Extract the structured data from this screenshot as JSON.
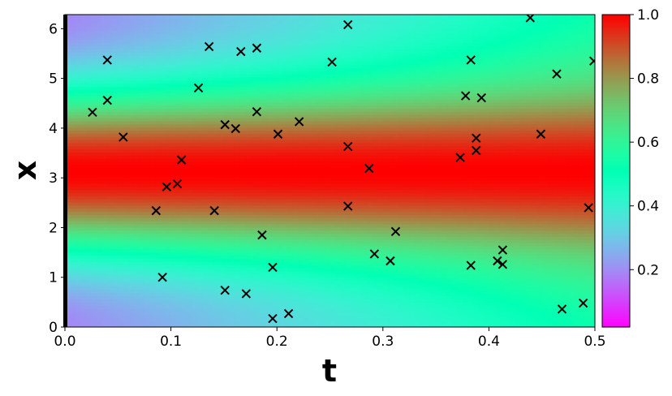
{
  "chart_data": {
    "type": "heatmap",
    "title": "",
    "xlabel": "t",
    "ylabel": "x",
    "xlim": [
      0,
      0.5
    ],
    "ylim": [
      0,
      6.2832
    ],
    "x_ticks": [
      "0.0",
      "0.1",
      "0.2",
      "0.3",
      "0.4",
      "0.5"
    ],
    "y_ticks": [
      "0",
      "1",
      "2",
      "3",
      "4",
      "5",
      "6"
    ],
    "colormap": "rainbow",
    "colorbar": {
      "range": [
        0.02,
        1.0
      ],
      "ticks": [
        "0.2",
        "0.4",
        "0.6",
        "0.8",
        "1.0"
      ],
      "tick_values": [
        0.2,
        0.4,
        0.6,
        0.8,
        1.0
      ]
    },
    "boundary_marker_color": "#000000",
    "marker": "x",
    "marker_color": "#000000",
    "scatter_points": [
      {
        "t": 0.026,
        "x": 4.32
      },
      {
        "t": 0.04,
        "x": 5.37
      },
      {
        "t": 0.04,
        "x": 4.56
      },
      {
        "t": 0.055,
        "x": 3.82
      },
      {
        "t": 0.086,
        "x": 2.34
      },
      {
        "t": 0.092,
        "x": 1.0
      },
      {
        "t": 0.096,
        "x": 2.82
      },
      {
        "t": 0.106,
        "x": 2.88
      },
      {
        "t": 0.11,
        "x": 3.36
      },
      {
        "t": 0.126,
        "x": 4.81
      },
      {
        "t": 0.136,
        "x": 5.64
      },
      {
        "t": 0.141,
        "x": 2.34
      },
      {
        "t": 0.151,
        "x": 4.07
      },
      {
        "t": 0.151,
        "x": 0.74
      },
      {
        "t": 0.161,
        "x": 3.99
      },
      {
        "t": 0.166,
        "x": 5.54
      },
      {
        "t": 0.171,
        "x": 0.67
      },
      {
        "t": 0.181,
        "x": 5.61
      },
      {
        "t": 0.181,
        "x": 4.33
      },
      {
        "t": 0.186,
        "x": 1.85
      },
      {
        "t": 0.196,
        "x": 1.2
      },
      {
        "t": 0.196,
        "x": 0.17
      },
      {
        "t": 0.201,
        "x": 3.88
      },
      {
        "t": 0.211,
        "x": 0.27
      },
      {
        "t": 0.221,
        "x": 4.13
      },
      {
        "t": 0.252,
        "x": 5.33
      },
      {
        "t": 0.267,
        "x": 6.08
      },
      {
        "t": 0.267,
        "x": 3.63
      },
      {
        "t": 0.267,
        "x": 2.43
      },
      {
        "t": 0.287,
        "x": 3.19
      },
      {
        "t": 0.292,
        "x": 1.47
      },
      {
        "t": 0.307,
        "x": 1.33
      },
      {
        "t": 0.312,
        "x": 1.92
      },
      {
        "t": 0.373,
        "x": 3.41
      },
      {
        "t": 0.378,
        "x": 4.65
      },
      {
        "t": 0.383,
        "x": 5.37
      },
      {
        "t": 0.383,
        "x": 1.24
      },
      {
        "t": 0.388,
        "x": 3.8
      },
      {
        "t": 0.388,
        "x": 3.55
      },
      {
        "t": 0.393,
        "x": 4.61
      },
      {
        "t": 0.408,
        "x": 1.33
      },
      {
        "t": 0.413,
        "x": 1.55
      },
      {
        "t": 0.413,
        "x": 1.26
      },
      {
        "t": 0.439,
        "x": 6.22
      },
      {
        "t": 0.449,
        "x": 3.88
      },
      {
        "t": 0.464,
        "x": 5.09
      },
      {
        "t": 0.469,
        "x": 0.36
      },
      {
        "t": 0.489,
        "x": 0.48
      },
      {
        "t": 0.494,
        "x": 2.4
      },
      {
        "t": 0.499,
        "x": 5.35
      }
    ],
    "grid": false,
    "legend": "none"
  }
}
